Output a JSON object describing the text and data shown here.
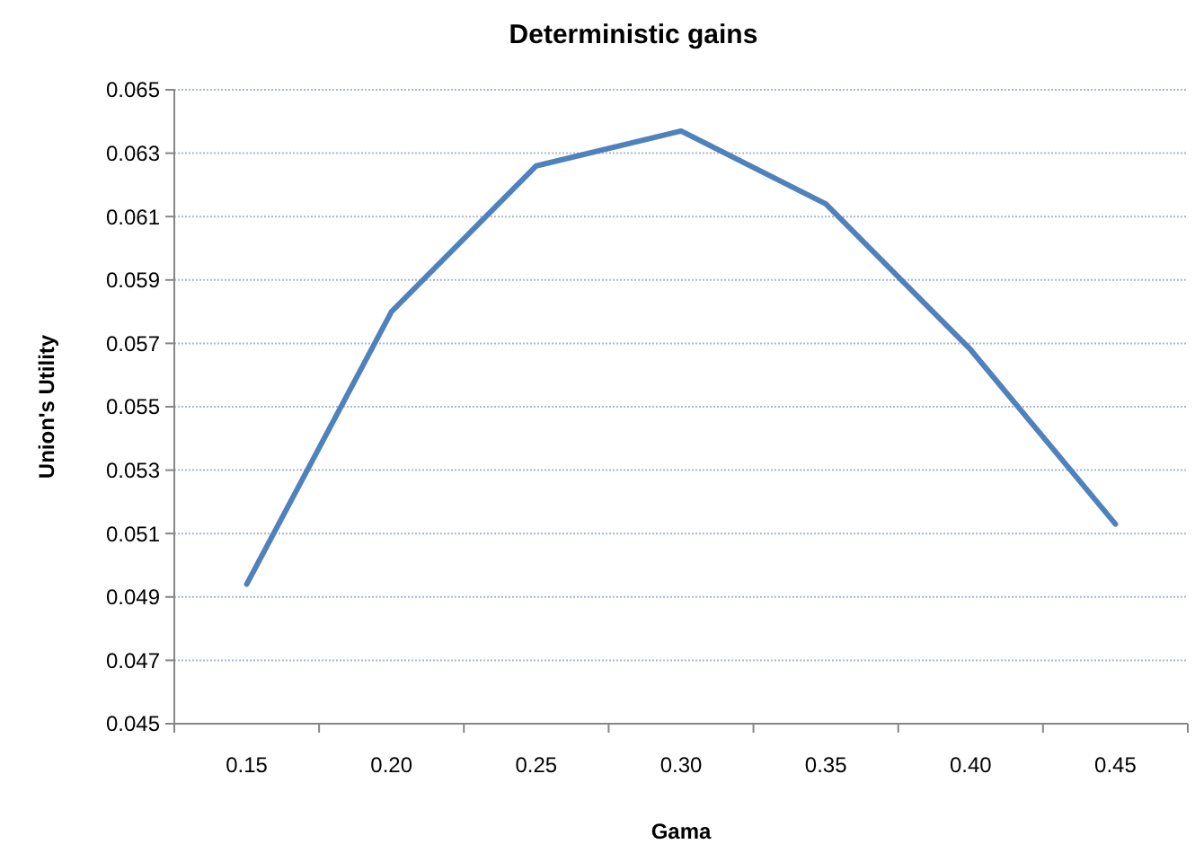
{
  "chart_data": {
    "type": "line",
    "title": "Deterministic gains",
    "xlabel": "Gama",
    "ylabel": "Union's Utility",
    "categories": [
      "0.15",
      "0.20",
      "0.25",
      "0.30",
      "0.35",
      "0.40",
      "0.45"
    ],
    "series": [
      {
        "color": "#4f81bd",
        "values": [
          0.0494,
          0.058,
          0.0626,
          0.0637,
          0.0614,
          0.0568,
          0.0513
        ]
      }
    ],
    "ylim": [
      0.045,
      0.065
    ],
    "yticks": [
      {
        "value": 0.045,
        "label": "0.045"
      },
      {
        "value": 0.047,
        "label": "0.047"
      },
      {
        "value": 0.049,
        "label": "0.049"
      },
      {
        "value": 0.051,
        "label": "0.051"
      },
      {
        "value": 0.053,
        "label": "0.053"
      },
      {
        "value": 0.055,
        "label": "0.055"
      },
      {
        "value": 0.057,
        "label": "0.057"
      },
      {
        "value": 0.059,
        "label": "0.059"
      },
      {
        "value": 0.061,
        "label": "0.061"
      },
      {
        "value": 0.063,
        "label": "0.063"
      },
      {
        "value": 0.065,
        "label": "0.065"
      }
    ],
    "grid": "y",
    "marker": "none",
    "line_style": "solid"
  }
}
